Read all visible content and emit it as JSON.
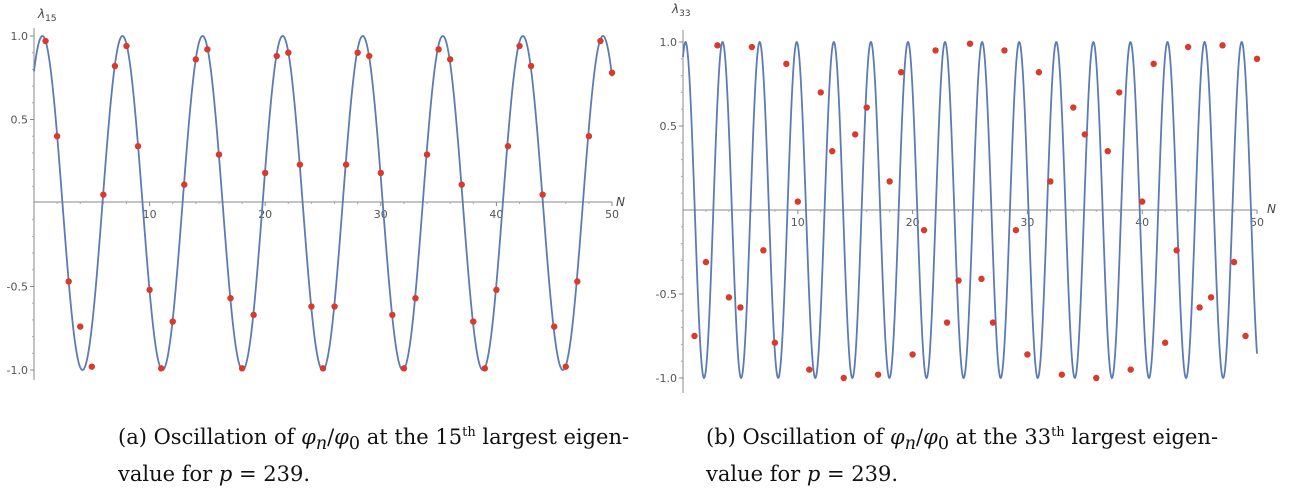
{
  "chart_data": [
    {
      "type": "line",
      "ylabel_base": "λ",
      "ylabel_sub": "15",
      "xlabel": "N",
      "xlim": [
        0,
        50
      ],
      "ylim": [
        -1,
        1
      ],
      "x_ticks": [
        10,
        20,
        30,
        40,
        50
      ],
      "y_ticks": [
        1.0,
        0.5,
        -0.5,
        -1.0
      ],
      "y_tick_labels": [
        "1.0",
        "0.5",
        "-0.5",
        "-1.0"
      ],
      "grid": false,
      "series": [
        {
          "kind": "curve",
          "function": "cos",
          "amplitude": 1,
          "angular_frequency": 0.9071,
          "phase_offset": 0.6618,
          "color": "#5b7bb5"
        },
        {
          "kind": "points",
          "color": "#d93a2b",
          "x": [
            1,
            2,
            3,
            4,
            5,
            6,
            7,
            8,
            9,
            10,
            11,
            12,
            13,
            14,
            15,
            16,
            17,
            18,
            19,
            20,
            21,
            22,
            23,
            24,
            25,
            26,
            27,
            28,
            29,
            30,
            31,
            32,
            33,
            34,
            35,
            36,
            37,
            38,
            39,
            40,
            41,
            42,
            43,
            44,
            45,
            46,
            47,
            48,
            49,
            50
          ],
          "y": [
            0.97,
            0.4,
            -0.47,
            -0.74,
            -0.98,
            0.05,
            0.82,
            0.94,
            0.34,
            -0.52,
            -0.99,
            -0.71,
            0.11,
            0.86,
            0.92,
            0.29,
            -0.57,
            -0.99,
            -0.67,
            0.18,
            0.88,
            0.9,
            0.23,
            -0.62,
            -0.99,
            -0.62,
            0.23,
            0.9,
            0.88,
            0.18,
            -0.67,
            -0.99,
            -0.57,
            0.29,
            0.92,
            0.86,
            0.11,
            -0.71,
            -0.99,
            -0.52,
            0.34,
            0.94,
            0.82,
            0.05,
            -0.74,
            -0.98,
            -0.47,
            0.4,
            0.97,
            0.78
          ]
        }
      ]
    },
    {
      "type": "line",
      "ylabel_base": "λ",
      "ylabel_sub": "33",
      "xlabel": "N",
      "xlim": [
        0,
        50
      ],
      "ylim": [
        -1,
        1
      ],
      "x_ticks": [
        10,
        20,
        30,
        40,
        50
      ],
      "y_ticks": [
        1.0,
        0.5,
        -0.5,
        -1.0
      ],
      "y_tick_labels": [
        "1.0",
        "0.5",
        "-0.5",
        "-1.0"
      ],
      "grid": false,
      "series": [
        {
          "kind": "curve",
          "function": "cos",
          "amplitude": 1,
          "angular_frequency": 1.9454,
          "phase_offset": 0.4253,
          "color": "#5b7bb5"
        },
        {
          "kind": "points",
          "color": "#d93a2b",
          "x": [
            1,
            2,
            3,
            4,
            5,
            6,
            7,
            8,
            9,
            10,
            11,
            12,
            13,
            14,
            15,
            16,
            17,
            18,
            19,
            20,
            21,
            22,
            23,
            24,
            25,
            26,
            27,
            28,
            29,
            30,
            31,
            32,
            33,
            34,
            35,
            36,
            37,
            38,
            39,
            40,
            41,
            42,
            43,
            44,
            45,
            46,
            47,
            48,
            49,
            50
          ],
          "y": [
            -0.75,
            -0.31,
            0.98,
            -0.52,
            -0.58,
            0.97,
            -0.24,
            -0.79,
            0.87,
            0.05,
            -0.95,
            0.7,
            0.35,
            -1.0,
            0.45,
            0.61,
            -0.98,
            0.17,
            0.82,
            -0.86,
            -0.12,
            0.95,
            -0.67,
            -0.42,
            0.99,
            -0.41,
            -0.67,
            0.95,
            -0.12,
            -0.86,
            0.82,
            0.17,
            -0.98,
            0.61,
            0.45,
            -1.0,
            0.35,
            0.7,
            -0.95,
            0.05,
            0.87,
            -0.79,
            -0.24,
            0.97,
            -0.58,
            -0.52,
            0.98,
            -0.31,
            -0.75,
            0.9
          ]
        }
      ]
    }
  ],
  "captions": {
    "a": {
      "prefix": "(a) Oscillation of ",
      "phi_n": "φ",
      "sub_n": "n",
      "slash": "/",
      "phi_0": "φ",
      "sub_0": "0",
      "middle": " at the 15",
      "sup": "th",
      "suffix_line1": " largest eigen-",
      "line2_prefix": "value for ",
      "line2_var": "p",
      "line2_suffix": " = 239."
    },
    "b": {
      "prefix": "(b) Oscillation of ",
      "phi_n": "φ",
      "sub_n": "n",
      "slash": "/",
      "phi_0": "φ",
      "sub_0": "0",
      "middle": " at the 33",
      "sup": "th",
      "suffix_line1": " largest eigen-",
      "line2_prefix": "value for ",
      "line2_var": "p",
      "line2_suffix": " = 239."
    }
  }
}
